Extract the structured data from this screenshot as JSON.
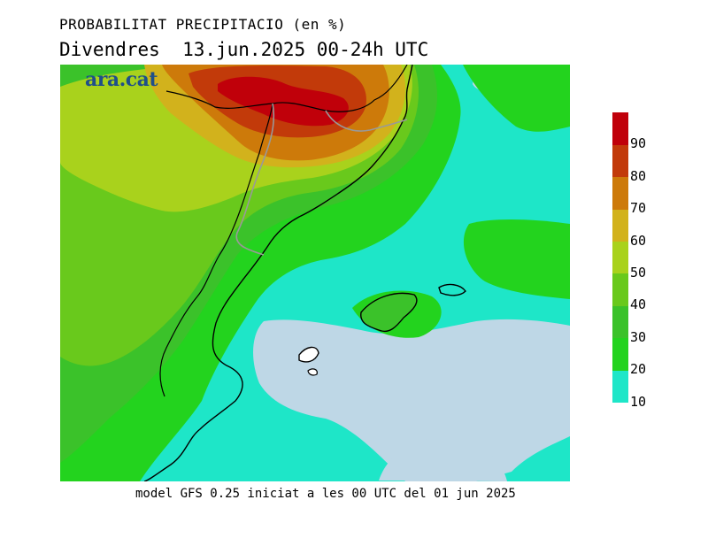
{
  "header": {
    "title": "PROBABILITAT PRECIPITACIO (en %)",
    "subtitle": "Divendres  13.jun.2025 00-24h UTC"
  },
  "map": {
    "watermark": "ara.cat"
  },
  "footer": {
    "caption": "model GFS 0.25 iniciat a les 00 UTC del 01 jun 2025"
  },
  "legend": {
    "bands": [
      {
        "from": 10,
        "to": 20,
        "color": "#1ee6c8"
      },
      {
        "from": 20,
        "to": 30,
        "color": "#23d31e"
      },
      {
        "from": 30,
        "to": 40,
        "color": "#3bc22a"
      },
      {
        "from": 40,
        "to": 50,
        "color": "#69c91c"
      },
      {
        "from": 50,
        "to": 60,
        "color": "#a9d21c"
      },
      {
        "from": 60,
        "to": 70,
        "color": "#d2b21c"
      },
      {
        "from": 70,
        "to": 80,
        "color": "#cd7a0a"
      },
      {
        "from": 80,
        "to": 90,
        "color": "#c23a0a"
      },
      {
        "from": 90,
        "to": 100,
        "color": "#c0000a"
      }
    ],
    "ticks": [
      "10",
      "20",
      "30",
      "40",
      "50",
      "60",
      "70",
      "80",
      "90"
    ],
    "below_range_color": "#bed7e6"
  }
}
